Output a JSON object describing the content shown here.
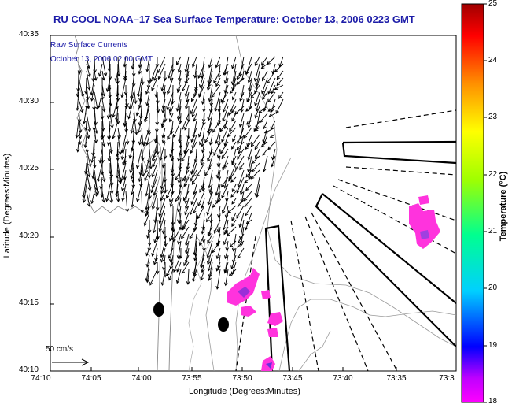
{
  "title": "RU COOL  NOAA–17  Sea Surface Temperature:  October 13, 2006 0223 GMT",
  "overlay": {
    "line1": "Raw Surface Currents",
    "line2": "October 13, 2006 02:00 GMT"
  },
  "axes": {
    "ylabel": "Latitude (Degrees:Minutes)",
    "xlabel": "Longitude (Degrees:Minutes)",
    "lat_ticks": [
      "40:35",
      "40:30",
      "40:25",
      "40:20",
      "40:15",
      "40:10"
    ],
    "lon_ticks": [
      "74:10",
      "74:05",
      "74:00",
      "73:55",
      "73:50",
      "73:45",
      "73:40",
      "73:35",
      "73:3"
    ]
  },
  "scale": {
    "label": "50 cm/s"
  },
  "colorbar": {
    "label": "Temperature (°C)",
    "ticks": [
      "25",
      "24",
      "23",
      "22",
      "21",
      "20",
      "19",
      "18"
    ],
    "range": [
      18,
      25
    ]
  },
  "colors": {
    "title": "#1c1ca8",
    "sst_patch": "#ff33dd",
    "land": "#ffffff",
    "frame": "#000000"
  }
}
